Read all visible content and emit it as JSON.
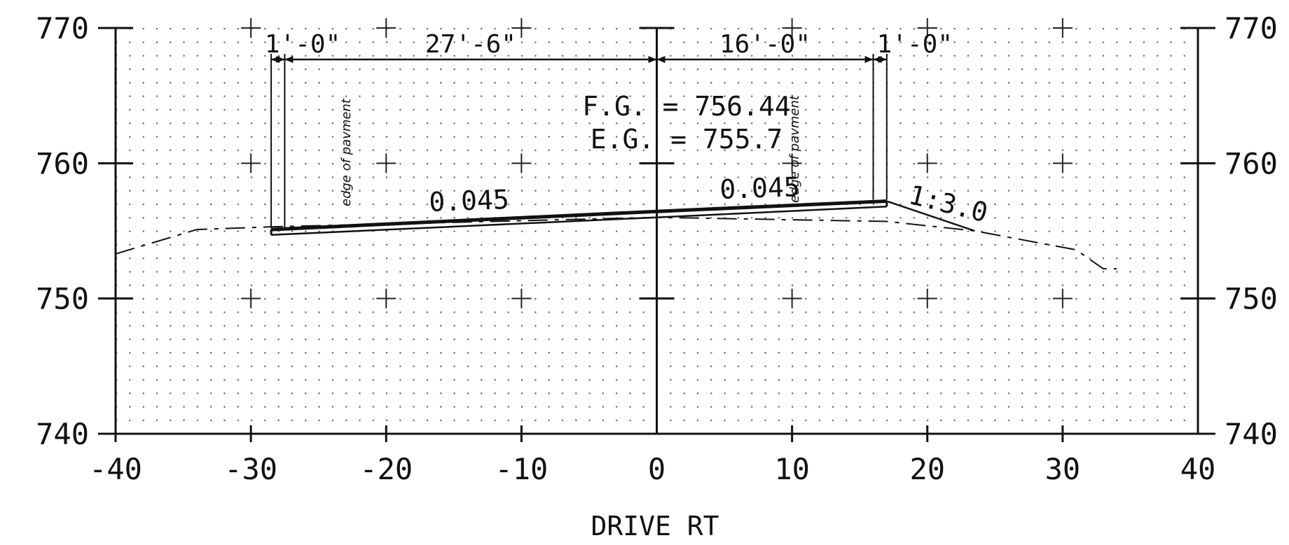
{
  "chart_data": {
    "type": "cross-section",
    "xlabel": "DRIVE RT",
    "xlim": [
      -40,
      40
    ],
    "ylim": [
      740,
      770
    ],
    "x_ticks": [
      -40,
      -30,
      -20,
      -10,
      0,
      10,
      20,
      30,
      40
    ],
    "x_tick_labels": [
      "-40",
      "-30",
      "-20",
      "-10",
      "0",
      "10",
      "20",
      "30",
      "40"
    ],
    "y_ticks": [
      740,
      750,
      760,
      770
    ],
    "y_tick_labels": [
      "740",
      "750",
      "760",
      "770"
    ],
    "grid": "dotted",
    "existing_ground": [
      [
        -40,
        753.3
      ],
      [
        -34,
        755.1
      ],
      [
        -28.5,
        755.3
      ],
      [
        0,
        756.0
      ],
      [
        17,
        755.7
      ],
      [
        23.5,
        755.0
      ],
      [
        31,
        753.6
      ],
      [
        33,
        752.2
      ],
      [
        34,
        752.2
      ]
    ],
    "finished_grade_top": [
      [
        -28.5,
        755.1
      ],
      [
        0,
        756.44
      ],
      [
        17,
        757.2
      ]
    ],
    "finished_grade_bottom": [
      [
        -28.5,
        754.7
      ],
      [
        0,
        756.0
      ],
      [
        17,
        756.8
      ]
    ],
    "side_slope": [
      [
        17,
        757.2
      ],
      [
        23.5,
        755.0
      ]
    ],
    "edge_of_pavement_x": [
      -27.5,
      16.0
    ],
    "shoulder_line_x": [
      -28.5,
      17.0
    ],
    "dimensions": [
      {
        "label": "1'-0\"",
        "from": -28.5,
        "to": -27.5
      },
      {
        "label": "27'-6\"",
        "from": -27.5,
        "to": 0
      },
      {
        "label": "16'-0\"",
        "from": 0,
        "to": 16.0
      },
      {
        "label": "1'-0\"",
        "from": 16.0,
        "to": 17.0
      }
    ],
    "annotations": {
      "fg": "F.G. = 756.44",
      "eg": "E.G. = 755.7",
      "slope_left": "0.045",
      "slope_right": "0.045",
      "side_slope": "1:3.0",
      "edge_left": "edge of pavment",
      "edge_right": "edge of pavment"
    }
  }
}
